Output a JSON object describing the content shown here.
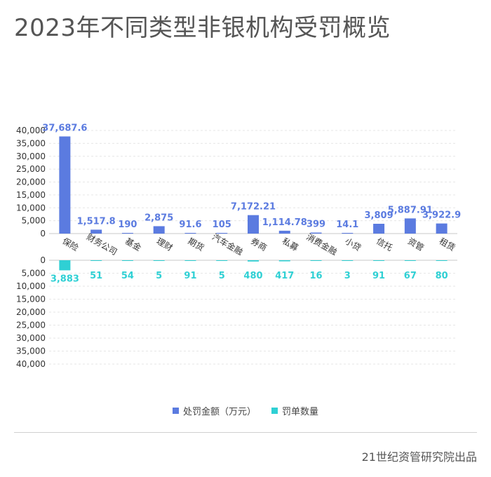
{
  "title": "2023年不同类型非银机构受罚概览",
  "source": "21世纪资管研究院出品",
  "colors": {
    "fine": "#5b7be0",
    "count": "#2fd0d4",
    "axis_text": "#333333",
    "grid": "#e6e6e6"
  },
  "chart_data": {
    "type": "bar",
    "categories": [
      "保险",
      "财务公司",
      "基金",
      "理财",
      "期货",
      "汽车金融",
      "券商",
      "私募",
      "消费金融",
      "小贷",
      "信托",
      "资管",
      "租赁"
    ],
    "series": [
      {
        "name": "处罚金额（万元）",
        "values": [
          37687.6,
          1517.8,
          190,
          2875,
          91.6,
          105,
          7172.21,
          1114.78,
          399,
          14.1,
          3809,
          5887.91,
          3922.9
        ],
        "labels": [
          "37,687.6",
          "1,517.8",
          "190",
          "2,875",
          "91.6",
          "105",
          "7,172.21",
          "1,114.78",
          "399",
          "14.1",
          "3,809",
          "5,887.91",
          "3,922.9"
        ]
      },
      {
        "name": "罚单数量",
        "values": [
          3883,
          51,
          54,
          5,
          91,
          5,
          480,
          417,
          16,
          3,
          91,
          67,
          80
        ],
        "labels": [
          "3,883",
          "51",
          "54",
          "5",
          "91",
          "5",
          "480",
          "417",
          "16",
          "3",
          "91",
          "67",
          "80"
        ]
      }
    ],
    "top_axis": {
      "ylim": [
        0,
        40000
      ],
      "ticks": [
        "0",
        "5,000",
        "10,000",
        "15,000",
        "20,000",
        "25,000",
        "30,000",
        "35,000",
        "40,000"
      ]
    },
    "bottom_axis": {
      "ylim": [
        0,
        40000
      ],
      "ticks": [
        "0",
        "5,000",
        "10,000",
        "15,000",
        "20,000",
        "25,000",
        "30,000",
        "35,000",
        "40,000"
      ]
    },
    "grid": true,
    "legend_position": "bottom"
  }
}
